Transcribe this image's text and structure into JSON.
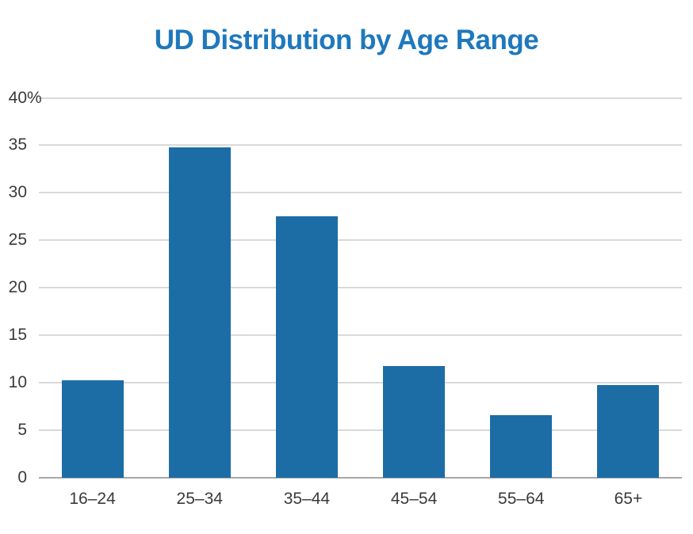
{
  "chart_data": {
    "type": "bar",
    "title": "UD Distribution by Age Range",
    "categories": [
      "16–24",
      "25–34",
      "35–44",
      "45–54",
      "55–64",
      "65+"
    ],
    "values": [
      10.3,
      34.8,
      27.5,
      11.8,
      6.6,
      9.8
    ],
    "xlabel": "",
    "ylabel": "",
    "ylim": [
      0,
      40
    ],
    "y_ticks": [
      {
        "value": 0,
        "label": "0"
      },
      {
        "value": 5,
        "label": "5"
      },
      {
        "value": 10,
        "label": "10"
      },
      {
        "value": 15,
        "label": "15"
      },
      {
        "value": 20,
        "label": "20"
      },
      {
        "value": 25,
        "label": "25"
      },
      {
        "value": 30,
        "label": "30"
      },
      {
        "value": 35,
        "label": "35"
      },
      {
        "value": 40,
        "label": "40%"
      }
    ],
    "grid": true,
    "legend": "none",
    "colors": {
      "title": "#1e78bd",
      "bar": "#1c6da6",
      "gridline": "#d9d9d9",
      "axis_line": "#a8a8a8",
      "tick_label": "#3a3a3a",
      "background": "#ffffff"
    }
  }
}
